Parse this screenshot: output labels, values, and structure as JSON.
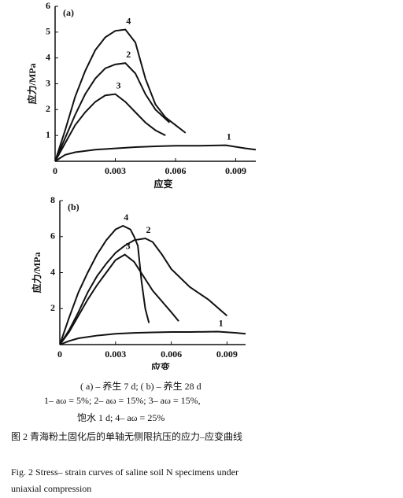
{
  "chart_data": [
    {
      "type": "line",
      "panel": "(a)",
      "ylabel": "应力/MPa",
      "xlabel": "应变",
      "xlim": [
        0,
        0.01
      ],
      "ylim": [
        0,
        6
      ],
      "xticks": [
        0,
        0.003,
        0.006,
        0.009
      ],
      "yticks": [
        1,
        2,
        3,
        4,
        5,
        6
      ],
      "series": [
        {
          "name": "1",
          "color": "#111111",
          "x": [
            0,
            0.0005,
            0.001,
            0.002,
            0.003,
            0.004,
            0.005,
            0.006,
            0.007,
            0.0085,
            0.0095,
            0.01
          ],
          "values": [
            0,
            0.25,
            0.35,
            0.45,
            0.5,
            0.55,
            0.58,
            0.6,
            0.6,
            0.62,
            0.5,
            0.45
          ]
        },
        {
          "name": "2",
          "color": "#111111",
          "x": [
            0,
            0.0005,
            0.001,
            0.0015,
            0.002,
            0.0025,
            0.003,
            0.0035,
            0.004,
            0.0045,
            0.005,
            0.0057
          ],
          "values": [
            0,
            0.9,
            1.8,
            2.6,
            3.2,
            3.6,
            3.75,
            3.8,
            3.4,
            2.6,
            2.0,
            1.5
          ]
        },
        {
          "name": "3",
          "color": "#111111",
          "x": [
            0,
            0.0005,
            0.001,
            0.0015,
            0.002,
            0.0025,
            0.003,
            0.0035,
            0.004,
            0.0045,
            0.005,
            0.0055
          ],
          "values": [
            0,
            0.7,
            1.4,
            1.9,
            2.3,
            2.55,
            2.6,
            2.3,
            1.9,
            1.5,
            1.2,
            1.0
          ]
        },
        {
          "name": "4",
          "color": "#111111",
          "x": [
            0,
            0.0005,
            0.001,
            0.0015,
            0.002,
            0.0025,
            0.003,
            0.0035,
            0.004,
            0.0045,
            0.005,
            0.0055,
            0.006,
            0.0065
          ],
          "values": [
            0,
            1.2,
            2.5,
            3.5,
            4.3,
            4.8,
            5.05,
            5.1,
            4.6,
            3.2,
            2.2,
            1.7,
            1.4,
            1.1
          ]
        }
      ]
    },
    {
      "type": "line",
      "panel": "(b)",
      "ylabel": "应力/MPa",
      "xlabel": "应变",
      "xlim": [
        0,
        0.01
      ],
      "ylim": [
        0,
        8
      ],
      "xticks": [
        0,
        0.003,
        0.006,
        0.009
      ],
      "yticks": [
        2,
        4,
        6,
        8
      ],
      "series": [
        {
          "name": "1",
          "color": "#111111",
          "x": [
            0,
            0.0005,
            0.001,
            0.002,
            0.003,
            0.004,
            0.005,
            0.006,
            0.007,
            0.0085,
            0.0095,
            0.01
          ],
          "values": [
            0,
            0.2,
            0.35,
            0.5,
            0.6,
            0.65,
            0.68,
            0.7,
            0.7,
            0.72,
            0.65,
            0.6
          ]
        },
        {
          "name": "2",
          "color": "#111111",
          "x": [
            0,
            0.0005,
            0.001,
            0.0015,
            0.002,
            0.0025,
            0.003,
            0.0035,
            0.004,
            0.0046,
            0.005,
            0.0055,
            0.006,
            0.007,
            0.008,
            0.009
          ],
          "values": [
            0,
            0.8,
            1.8,
            2.9,
            3.8,
            4.5,
            5.1,
            5.5,
            5.8,
            5.9,
            5.7,
            5.0,
            4.2,
            3.2,
            2.5,
            1.6
          ]
        },
        {
          "name": "3",
          "color": "#111111",
          "x": [
            0,
            0.0005,
            0.001,
            0.0015,
            0.002,
            0.0025,
            0.003,
            0.0035,
            0.004,
            0.0045,
            0.005,
            0.0055,
            0.006,
            0.0064
          ],
          "values": [
            0,
            0.7,
            1.6,
            2.5,
            3.3,
            4.0,
            4.7,
            5.0,
            4.6,
            3.8,
            3.0,
            2.4,
            1.8,
            1.3
          ]
        },
        {
          "name": "4",
          "color": "#111111",
          "x": [
            0,
            0.0005,
            0.001,
            0.0015,
            0.002,
            0.0025,
            0.003,
            0.0034,
            0.0038,
            0.004,
            0.0042,
            0.0044,
            0.0046,
            0.0048
          ],
          "values": [
            0,
            1.5,
            2.9,
            4.0,
            5.0,
            5.8,
            6.4,
            6.6,
            6.4,
            6.0,
            5.5,
            3.5,
            2.0,
            1.2
          ]
        }
      ]
    }
  ],
  "caption": {
    "legend_lines": [
      "( a) – 养生 7 d; ( b) – 养生 28 d",
      "1– aω = 5%; 2– aω = 15%; 3– aω = 15%,",
      "饱水 1 d; 4– aω = 25%"
    ],
    "title_cn": "图 2   青海粉土固化后的单轴无侧限抗压的应力–应变曲线",
    "title_en": "Fig. 2 Stress– strain curves of saline soil N specimens under uniaxial compression"
  }
}
